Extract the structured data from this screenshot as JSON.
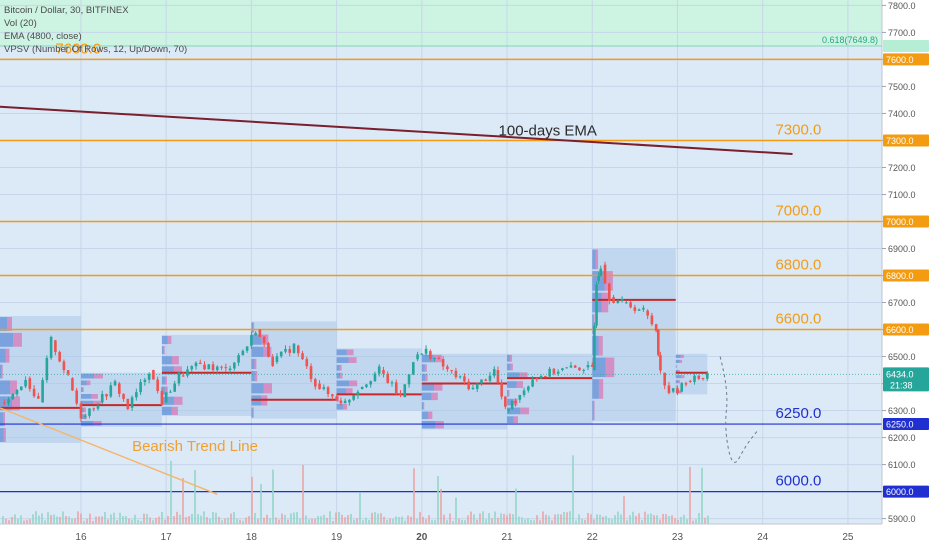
{
  "header": {
    "lines": [
      "Bitcoin / Dollar, 30, BITFINEX",
      "Vol (20)",
      "EMA (4800, close)",
      "VPSV (Number Of Rows, 12, Up/Down, 70)"
    ]
  },
  "colors": {
    "background": "#dce9f7",
    "fib_zone": "#cdf3e3",
    "orange_level": "#f39c12",
    "blue_level": "#1f2fd0",
    "ema_line": "#7a1f2d",
    "candle_up": "#26a69a",
    "candle_down": "#ef5350",
    "trend_line": "#f5b56b",
    "price_tag": "#26a69a"
  },
  "chart_data": {
    "type": "candlestick",
    "symbol": "Bitcoin / Dollar",
    "interval": "30",
    "exchange": "BITFINEX",
    "y_axis": {
      "min": 5880,
      "max": 7820,
      "ticks": [
        5900,
        6000,
        6100,
        6200,
        6300,
        6400,
        6500,
        6600,
        6700,
        6800,
        6900,
        7000,
        7100,
        7200,
        7300,
        7400,
        7500,
        7600,
        7700,
        7800
      ]
    },
    "x_axis": {
      "min": 15.05,
      "max": 25.4,
      "ticks": [
        "16",
        "17",
        "18",
        "19",
        "20",
        "21",
        "22",
        "23",
        "24",
        "25"
      ],
      "bold_tick": "20"
    },
    "horizontal_levels": [
      {
        "value": 7600,
        "label": "7600.0",
        "color": "orange",
        "label_x": 15.7
      },
      {
        "value": 7300,
        "label": "7300.0",
        "color": "orange",
        "label_x": 24.15
      },
      {
        "value": 7000,
        "label": "7000.0",
        "color": "orange",
        "label_x": 24.15
      },
      {
        "value": 6800,
        "label": "6800.0",
        "color": "orange",
        "label_x": 24.15
      },
      {
        "value": 6600,
        "label": "6600.0",
        "color": "orange",
        "label_x": 24.15
      },
      {
        "value": 6250,
        "label": "6250.0",
        "color": "blue",
        "label_x": 24.15
      },
      {
        "value": 6000,
        "label": "6000.0",
        "color": "blue",
        "label_x": 24.15
      }
    ],
    "fib_level": {
      "value": 7649.8,
      "label": "0.618(7649.8)"
    },
    "current_price": {
      "value": 6434,
      "label": "6434.0",
      "countdown": "21:38"
    },
    "ema": {
      "label": "100-days EMA",
      "start": [
        15.05,
        7425
      ],
      "end": [
        24.35,
        7250
      ],
      "label_at": [
        20.9,
        7318
      ]
    },
    "trend_line": {
      "label": "Bearish Trend Line",
      "start": [
        15.05,
        6310
      ],
      "end": [
        17.6,
        5990
      ],
      "label_at": [
        16.6,
        6150
      ]
    },
    "projection_arc": [
      [
        23.5,
        6500
      ],
      [
        23.6,
        6380
      ],
      [
        23.55,
        6230
      ],
      [
        23.65,
        6080
      ],
      [
        23.8,
        6170
      ],
      [
        23.95,
        6230
      ]
    ],
    "price_path": [
      [
        15.05,
        6330
      ],
      [
        15.2,
        6360
      ],
      [
        15.35,
        6420
      ],
      [
        15.5,
        6330
      ],
      [
        15.65,
        6560
      ],
      [
        15.85,
        6420
      ],
      [
        16.0,
        6280
      ],
      [
        16.2,
        6330
      ],
      [
        16.4,
        6400
      ],
      [
        16.55,
        6310
      ],
      [
        16.8,
        6450
      ],
      [
        16.95,
        6330
      ],
      [
        17.15,
        6430
      ],
      [
        17.4,
        6470
      ],
      [
        17.7,
        6450
      ],
      [
        17.95,
        6540
      ],
      [
        18.05,
        6600
      ],
      [
        18.25,
        6480
      ],
      [
        18.5,
        6540
      ],
      [
        18.75,
        6400
      ],
      [
        18.9,
        6360
      ],
      [
        19.1,
        6330
      ],
      [
        19.25,
        6380
      ],
      [
        19.5,
        6450
      ],
      [
        19.75,
        6350
      ],
      [
        19.9,
        6490
      ],
      [
        20.05,
        6520
      ],
      [
        20.3,
        6450
      ],
      [
        20.6,
        6380
      ],
      [
        20.85,
        6450
      ],
      [
        20.98,
        6300
      ],
      [
        21.1,
        6340
      ],
      [
        21.3,
        6420
      ],
      [
        21.6,
        6450
      ],
      [
        21.9,
        6460
      ],
      [
        22.0,
        6450
      ],
      [
        22.05,
        6780
      ],
      [
        22.1,
        6840
      ],
      [
        22.2,
        6720
      ],
      [
        22.35,
        6700
      ],
      [
        22.6,
        6670
      ],
      [
        22.75,
        6600
      ],
      [
        22.8,
        6440
      ],
      [
        22.9,
        6370
      ],
      [
        23.0,
        6370
      ],
      [
        23.1,
        6410
      ],
      [
        23.25,
        6420
      ],
      [
        23.35,
        6434
      ]
    ],
    "volume_profiles": [
      {
        "x0": 15.05,
        "x1": 16.0,
        "top": 6650,
        "bottom": 6180,
        "poc": 6310
      },
      {
        "x0": 16.0,
        "x1": 16.95,
        "top": 6440,
        "bottom": 6240,
        "poc": 6320
      },
      {
        "x0": 16.95,
        "x1": 18.0,
        "top": 6580,
        "bottom": 6280,
        "poc": 6440
      },
      {
        "x0": 18.0,
        "x1": 19.0,
        "top": 6630,
        "bottom": 6270,
        "poc": 6340
      },
      {
        "x0": 19.0,
        "x1": 20.0,
        "top": 6530,
        "bottom": 6300,
        "poc": 6360
      },
      {
        "x0": 20.0,
        "x1": 21.0,
        "top": 6510,
        "bottom": 6230,
        "poc": 6400
      },
      {
        "x0": 21.0,
        "x1": 22.0,
        "top": 6510,
        "bottom": 6250,
        "poc": 6420
      },
      {
        "x0": 22.0,
        "x1": 22.98,
        "top": 6900,
        "bottom": 6260,
        "poc": 6710
      },
      {
        "x0": 22.98,
        "x1": 23.35,
        "top": 6510,
        "bottom": 6360,
        "poc": 6440
      }
    ]
  }
}
